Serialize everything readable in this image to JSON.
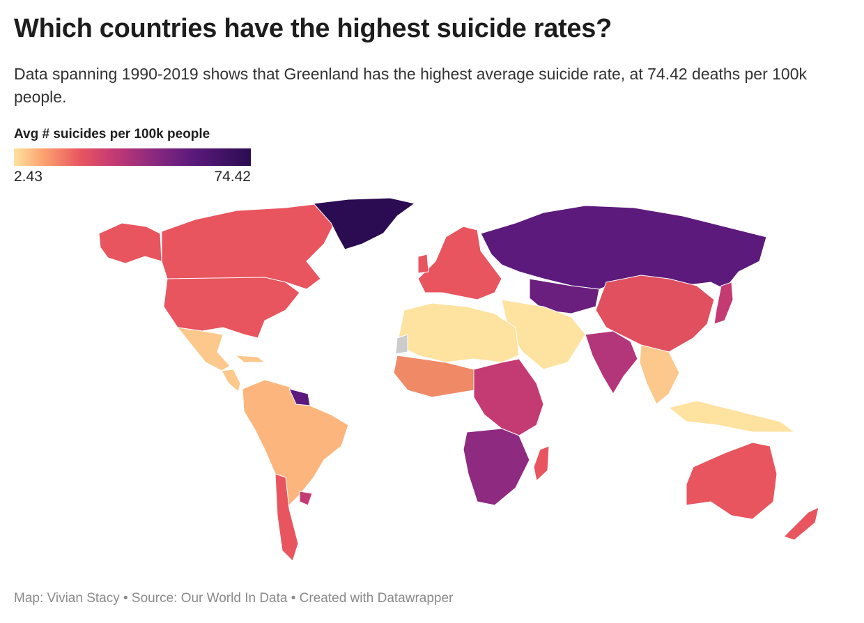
{
  "title": "Which countries have the highest suicide rates?",
  "subtitle": "Data spanning 1990-2019 shows that Greenland has the highest average suicide rate, at 74.42 deaths per 100k people.",
  "legend": {
    "title": "Avg # suicides per 100k people",
    "min_label": "2.43",
    "max_label": "74.42",
    "min_value": 2.43,
    "max_value": 74.42,
    "colors": [
      "#fee2a0",
      "#fca470",
      "#e8555f",
      "#c43a73",
      "#8e2a7f",
      "#5c1a7c",
      "#2b0c52"
    ]
  },
  "footer": "Map: Vivian Stacy • Source: Our World In Data • Created with Datawrapper",
  "map": {
    "regions": [
      {
        "name": "Greenland",
        "color": "#2b0c52"
      },
      {
        "name": "Russia",
        "color": "#5c1a7c"
      },
      {
        "name": "Canada",
        "color": "#e8555f"
      },
      {
        "name": "United States",
        "color": "#e8555f"
      },
      {
        "name": "Mexico",
        "color": "#fdc88b"
      },
      {
        "name": "Central America",
        "color": "#fdc88b"
      },
      {
        "name": "South America",
        "color": "#fcb67d"
      },
      {
        "name": "Guyana",
        "color": "#5c1a7c"
      },
      {
        "name": "Uruguay",
        "color": "#c43a73"
      },
      {
        "name": "Chile",
        "color": "#e8555f"
      },
      {
        "name": "Europe",
        "color": "#e8555f"
      },
      {
        "name": "North Africa",
        "color": "#fee2a0"
      },
      {
        "name": "Central Africa",
        "color": "#c43a73"
      },
      {
        "name": "Southern Africa",
        "color": "#8e2a7f"
      },
      {
        "name": "Madagascar",
        "color": "#e8555f"
      },
      {
        "name": "Middle East",
        "color": "#fee2a0"
      },
      {
        "name": "Kazakhstan",
        "color": "#6a1f7e"
      },
      {
        "name": "China",
        "color": "#e0505f"
      },
      {
        "name": "India",
        "color": "#b3367a"
      },
      {
        "name": "Southeast Asia",
        "color": "#fdc88b"
      },
      {
        "name": "Indonesia",
        "color": "#fee2a0"
      },
      {
        "name": "Japan",
        "color": "#c43a73"
      },
      {
        "name": "Australia",
        "color": "#e8555f"
      },
      {
        "name": "New Zealand",
        "color": "#e8555f"
      },
      {
        "name": "Western Sahara",
        "color": "#cccccc"
      }
    ]
  }
}
